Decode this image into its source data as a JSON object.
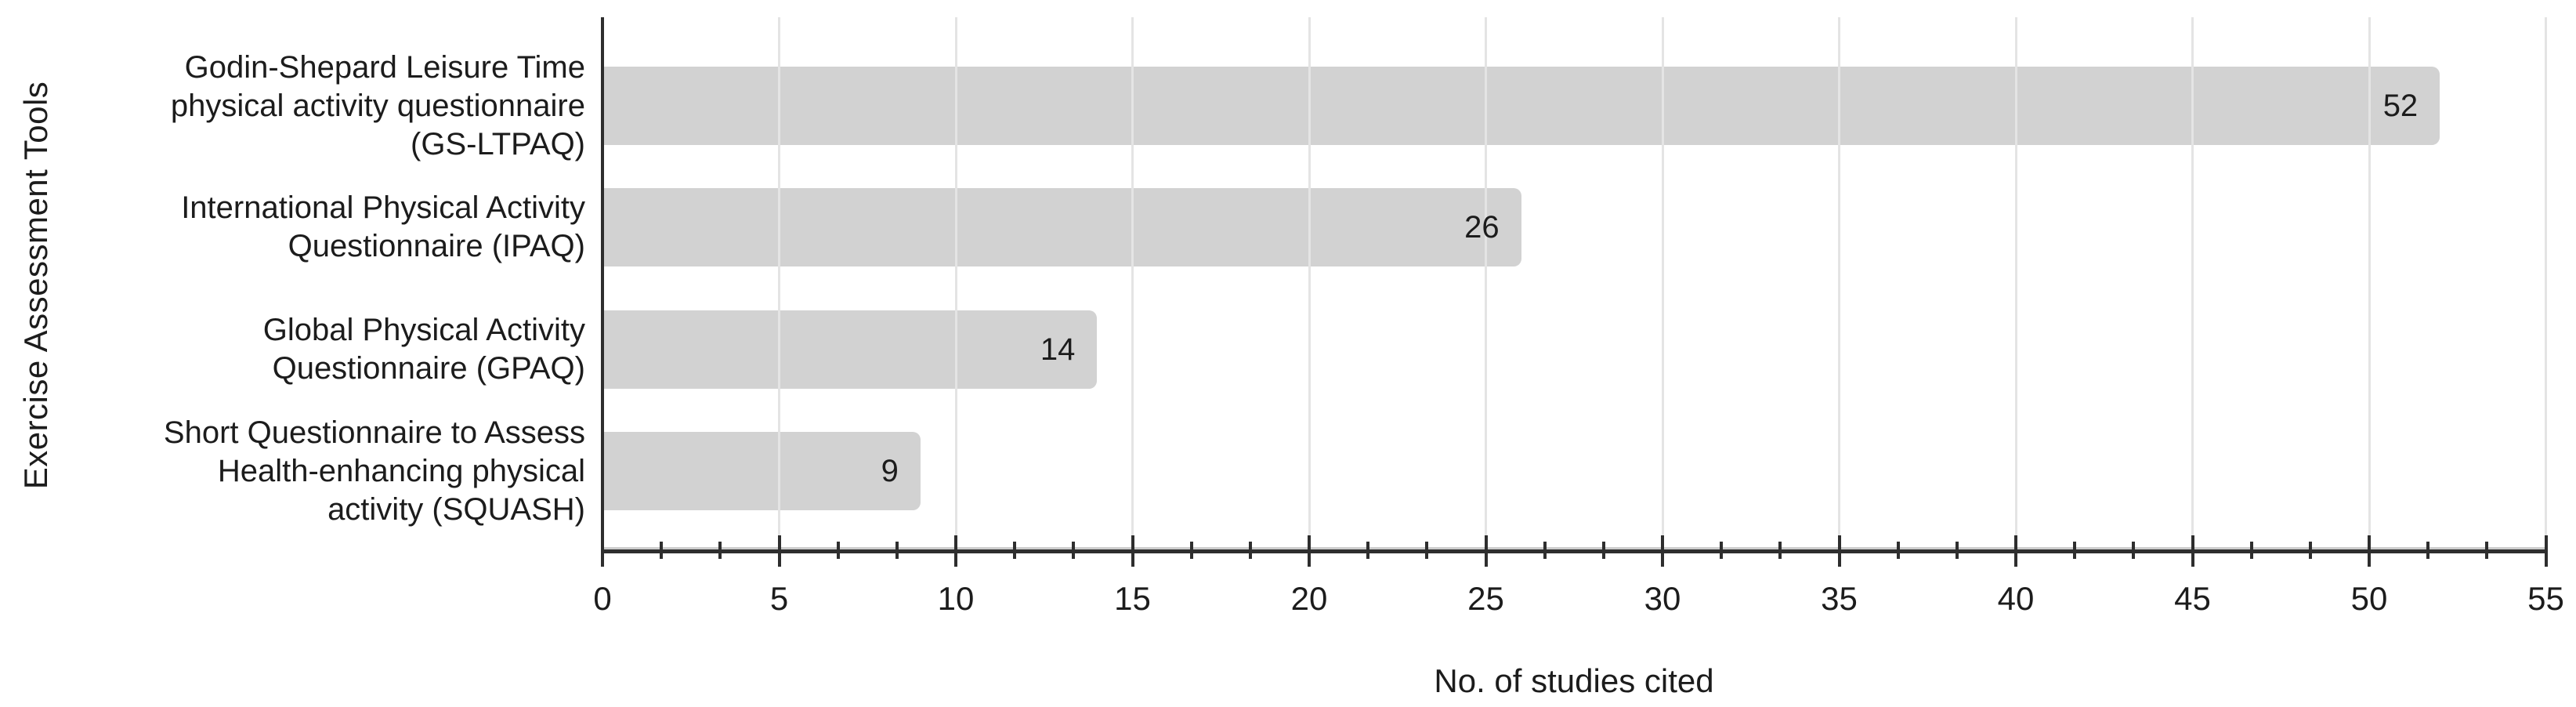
{
  "figure": {
    "background": "#ffffff"
  },
  "chart_data": {
    "type": "bar",
    "orientation": "horizontal",
    "title": "",
    "xlabel": "No. of studies cited",
    "ylabel": "Exercise Assessment Tools",
    "xlim": [
      0,
      55
    ],
    "x_major_ticks": [
      0,
      5,
      10,
      15,
      20,
      25,
      30,
      35,
      40,
      45,
      50,
      55
    ],
    "x_tick_labels": [
      "0",
      "5",
      "10",
      "15",
      "20",
      "25",
      "30",
      "35",
      "40",
      "45",
      "50",
      "55"
    ],
    "x_minor_ticks_between_majors": 2,
    "grid": "vertical-at-major-ticks",
    "legend": "none",
    "categories": [
      "Godin-Shepard Leisure Time\nphysical activity questionnaire\n(GS-LTPAQ)",
      "International Physical Activity\nQuestionnaire (IPAQ)",
      "Global Physical Activity\nQuestionnaire (GPAQ)",
      "Short Questionnaire to Assess\nHealth-enhancing physical\nactivity (SQUASH)"
    ],
    "values": [
      52,
      26,
      14,
      9
    ],
    "value_labels": [
      "52",
      "26",
      "14",
      "9"
    ],
    "colors": {
      "bar_fill": "#d2d2d2",
      "gridline": "#e4e4e4",
      "axis_shade": "#cccccc",
      "axis": "#2e2e2e",
      "text": "#1c1c1c"
    }
  }
}
